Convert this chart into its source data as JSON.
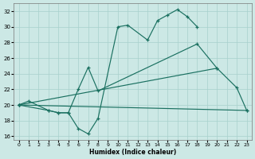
{
  "xlabel": "Humidex (Indice chaleur)",
  "xlim": [
    -0.5,
    23.5
  ],
  "ylim": [
    15.5,
    33.0
  ],
  "yticks": [
    16,
    18,
    20,
    22,
    24,
    26,
    28,
    30,
    32
  ],
  "xticks": [
    0,
    1,
    2,
    3,
    4,
    5,
    6,
    7,
    8,
    9,
    10,
    11,
    12,
    13,
    14,
    15,
    16,
    17,
    18,
    19,
    20,
    21,
    22,
    23
  ],
  "bg_color": "#cce8e5",
  "grid_color": "#a8d0cc",
  "line_color": "#1a7060",
  "curve1_x": [
    0,
    1,
    3,
    4,
    5,
    6,
    7,
    8,
    10,
    11,
    13,
    14,
    15,
    16,
    17,
    18
  ],
  "curve1_y": [
    20.0,
    20.5,
    19.3,
    19.0,
    19.0,
    17.0,
    16.3,
    18.3,
    30.0,
    30.2,
    28.3,
    30.8,
    31.5,
    32.2,
    31.3,
    30.0
  ],
  "curve2_x": [
    0,
    3,
    4,
    5,
    6,
    7,
    8,
    18,
    20,
    22,
    23
  ],
  "curve2_y": [
    20.0,
    19.3,
    19.0,
    19.0,
    22.0,
    24.8,
    21.8,
    27.8,
    24.7,
    22.2,
    19.3
  ],
  "curve3_x": [
    0,
    23
  ],
  "curve3_y": [
    20.0,
    19.3
  ],
  "curve4_x": [
    0,
    20
  ],
  "curve4_y": [
    20.0,
    24.7
  ]
}
